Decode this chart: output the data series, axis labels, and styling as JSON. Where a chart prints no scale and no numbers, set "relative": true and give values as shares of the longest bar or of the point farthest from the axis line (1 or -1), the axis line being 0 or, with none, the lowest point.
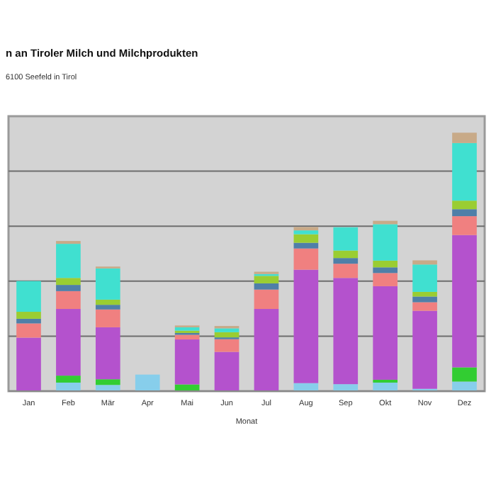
{
  "chart_data": {
    "type": "bar",
    "title": "n an Tiroler Milch und Milchprodukten",
    "subtitle": "6100 Seefeld in Tirol",
    "xlabel": "Monat",
    "relative": true,
    "stacked": true,
    "grid": true,
    "categories": [
      "Jan",
      "Feb",
      "Mär",
      "Apr",
      "Mai",
      "Jun",
      "Jul",
      "Aug",
      "Sep",
      "Okt",
      "Nov",
      "Dez"
    ],
    "series": [
      {
        "color": "#87ceeb",
        "values": [
          0,
          0.033,
          0.024,
          0.064,
          0,
          0,
          0,
          0.031,
          0.027,
          0.033,
          0.009,
          0.037
        ]
      },
      {
        "color": "#32cd32",
        "values": [
          0,
          0.027,
          0.022,
          0,
          0.026,
          0,
          0,
          0,
          0,
          0.011,
          0,
          0.055
        ]
      },
      {
        "color": "#b452cd",
        "values": [
          0.207,
          0.258,
          0.201,
          0,
          0.174,
          0.152,
          0.318,
          0.439,
          0.411,
          0.362,
          0.302,
          0.512
        ]
      },
      {
        "color": "#f08080",
        "values": [
          0.055,
          0.069,
          0.069,
          0,
          0.018,
          0.049,
          0.075,
          0.082,
          0.055,
          0.051,
          0.033,
          0.073
        ]
      },
      {
        "color": "#4f7fa8",
        "values": [
          0.018,
          0.024,
          0.018,
          0,
          0.007,
          0.007,
          0.024,
          0.022,
          0.022,
          0.022,
          0.022,
          0.027
        ]
      },
      {
        "color": "#9acd32",
        "values": [
          0.027,
          0.027,
          0.02,
          0,
          0.009,
          0.02,
          0.029,
          0.033,
          0.029,
          0.026,
          0.018,
          0.033
        ]
      },
      {
        "color": "#40e0d0",
        "values": [
          0.119,
          0.132,
          0.121,
          0,
          0.013,
          0.015,
          0.007,
          0.015,
          0.09,
          0.141,
          0.106,
          0.223
        ]
      },
      {
        "color": "#c8aa88",
        "values": [
          0,
          0.011,
          0.007,
          0,
          0.007,
          0.009,
          0.009,
          0.013,
          0,
          0.013,
          0.016,
          0.04
        ]
      }
    ]
  }
}
